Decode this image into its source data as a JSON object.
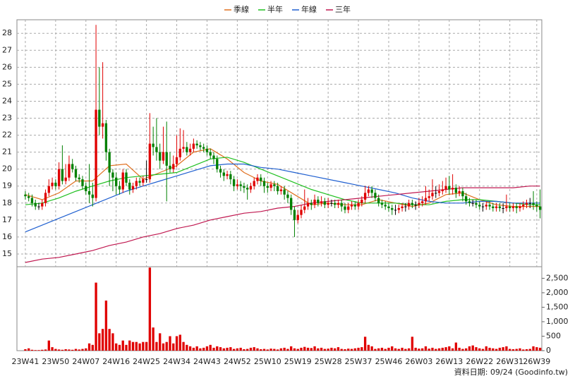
{
  "chart_data": {
    "type": "candlestick",
    "categories": [
      "23W41",
      null,
      null,
      null,
      null,
      null,
      null,
      null,
      null,
      "23W50",
      null,
      null,
      null,
      null,
      null,
      null,
      null,
      null,
      "24W07",
      null,
      null,
      null,
      null,
      null,
      null,
      null,
      null,
      "24W16",
      null,
      null,
      null,
      null,
      null,
      null,
      null,
      null,
      "24W25",
      null,
      null,
      null,
      null,
      null,
      null,
      null,
      null,
      "24W34",
      null,
      null,
      null,
      null,
      null,
      null,
      null,
      null,
      "24W43",
      null,
      null,
      null,
      null,
      null,
      null,
      null,
      null,
      "24W52",
      null,
      null,
      null,
      null,
      null,
      null,
      null,
      null,
      "25W10",
      null,
      null,
      null,
      null,
      null,
      null,
      null,
      null,
      "25W19",
      null,
      null,
      null,
      null,
      null,
      null,
      null,
      null,
      "25W28",
      null,
      null,
      null,
      null,
      null,
      null,
      null,
      null,
      "25W37",
      null,
      null,
      null,
      null,
      null,
      null,
      null,
      null,
      "25W46",
      null,
      null,
      null,
      null,
      null,
      null,
      null,
      null,
      "26W03",
      null,
      null,
      null,
      null,
      null,
      null,
      null,
      null,
      "26W13",
      null,
      null,
      null,
      null,
      null,
      null,
      null,
      null,
      "26W22",
      null,
      null,
      null,
      null,
      null,
      null,
      null,
      null,
      "26W31",
      null,
      null,
      null,
      null,
      null,
      null,
      null,
      "26W39",
      null
    ],
    "open": [
      18.5,
      18.4,
      18.3,
      18.0,
      17.8,
      17.8,
      18.0,
      18.6,
      19.0,
      19.2,
      19.0,
      20.0,
      19.3,
      19.5,
      20.3,
      20.0,
      19.5,
      19.4,
      19.0,
      18.7,
      18.5,
      18.3,
      23.5,
      22.5,
      22.7,
      21.0,
      19.8,
      19.5,
      19.0,
      18.8,
      19.8,
      19.2,
      18.8,
      19.0,
      19.3,
      19.2,
      19.4,
      19.4,
      21.5,
      21.3,
      21.0,
      20.5,
      21.0,
      20.2,
      20.0,
      20.3,
      20.7,
      21.2,
      21.3,
      21.0,
      21.2,
      21.5,
      21.4,
      21.3,
      21.2,
      21.0,
      20.8,
      20.6,
      20.0,
      19.8,
      19.6,
      19.7,
      19.4,
      19.0,
      19.1,
      19.0,
      18.9,
      18.8,
      19.0,
      19.3,
      19.5,
      19.3,
      19.0,
      18.9,
      19.1,
      19.0,
      18.7,
      18.8,
      18.5,
      18.3,
      17.6,
      17.0,
      17.3,
      17.6,
      17.8,
      18.0,
      17.9,
      18.2,
      18.0,
      18.1,
      17.9,
      18.0,
      18.0,
      17.9,
      18.0,
      17.8,
      17.6,
      17.8,
      17.9,
      17.8,
      18.0,
      18.2,
      18.6,
      18.8,
      18.6,
      18.3,
      18.0,
      17.9,
      17.8,
      17.7,
      17.6,
      17.6,
      17.7,
      17.8,
      17.8,
      18.0,
      17.9,
      17.9,
      18.0,
      18.1,
      18.3,
      18.4,
      18.6,
      18.6,
      18.7,
      18.8,
      19.0,
      18.8,
      18.9,
      18.6,
      18.7,
      18.4,
      18.1,
      18.0,
      18.0,
      17.9,
      17.8,
      17.8,
      17.9,
      17.8,
      17.7,
      17.8,
      17.7,
      17.7,
      17.8,
      17.7,
      17.8,
      17.7,
      17.8,
      17.9,
      18.0,
      18.0,
      17.9,
      17.8
    ],
    "high": [
      18.7,
      18.6,
      18.5,
      18.2,
      18.0,
      18.2,
      18.8,
      19.4,
      19.5,
      19.4,
      20.4,
      21.4,
      20.3,
      20.8,
      20.6,
      20.2,
      19.7,
      19.6,
      19.2,
      20.3,
      19.2,
      28.5,
      26.0,
      26.3,
      22.9,
      21.2,
      20.0,
      19.8,
      19.3,
      20.0,
      20.0,
      19.4,
      19.2,
      19.5,
      19.5,
      19.6,
      20.5,
      23.3,
      22.5,
      23.0,
      21.5,
      22.5,
      22.8,
      21.0,
      20.8,
      22.0,
      22.4,
      22.3,
      21.6,
      21.5,
      21.8,
      21.7,
      21.6,
      21.5,
      21.4,
      21.2,
      21.0,
      20.8,
      20.2,
      20.0,
      19.9,
      19.9,
      19.6,
      19.4,
      19.3,
      19.2,
      19.1,
      19.2,
      19.5,
      19.7,
      19.7,
      19.5,
      19.2,
      19.3,
      19.3,
      19.2,
      19.0,
      19.0,
      18.7,
      18.5,
      17.8,
      17.6,
      17.9,
      18.8,
      18.3,
      18.2,
      18.5,
      18.4,
      18.4,
      18.3,
      18.3,
      18.2,
      18.2,
      18.2,
      18.2,
      18.0,
      18.0,
      18.1,
      18.1,
      18.2,
      18.4,
      19.0,
      19.0,
      19.0,
      18.8,
      18.5,
      18.2,
      18.1,
      18.0,
      17.9,
      17.9,
      17.9,
      18.0,
      18.0,
      18.2,
      18.2,
      18.1,
      18.3,
      18.4,
      19.0,
      18.8,
      19.4,
      19.0,
      19.1,
      19.3,
      19.5,
      19.6,
      19.7,
      19.1,
      19.0,
      18.9,
      18.6,
      18.3,
      18.2,
      18.2,
      18.1,
      18.0,
      18.1,
      18.1,
      18.0,
      18.0,
      18.0,
      18.0,
      18.5,
      18.0,
      18.0,
      18.0,
      18.0,
      18.1,
      18.2,
      18.3,
      18.7,
      18.1,
      18.8
    ],
    "low": [
      18.2,
      18.1,
      17.8,
      17.6,
      17.6,
      17.6,
      17.8,
      18.4,
      18.8,
      18.8,
      18.8,
      19.1,
      19.1,
      19.3,
      19.8,
      19.3,
      19.2,
      18.8,
      18.5,
      18.0,
      17.8,
      18.1,
      22.0,
      21.8,
      20.5,
      19.0,
      18.7,
      18.5,
      18.5,
      18.6,
      19.0,
      18.5,
      18.6,
      18.8,
      19.0,
      19.0,
      19.2,
      19.2,
      20.8,
      20.5,
      20.0,
      20.3,
      18.1,
      19.8,
      19.8,
      20.1,
      20.5,
      21.0,
      20.8,
      20.8,
      21.0,
      21.2,
      21.1,
      21.0,
      20.8,
      20.6,
      20.3,
      19.8,
      19.5,
      19.3,
      19.4,
      19.1,
      18.7,
      18.8,
      18.7,
      18.6,
      18.2,
      18.6,
      18.8,
      19.1,
      19.0,
      18.6,
      18.6,
      18.7,
      18.7,
      18.5,
      18.5,
      18.2,
      18.0,
      17.3,
      16.0,
      16.8,
      17.1,
      17.4,
      17.6,
      17.6,
      17.7,
      17.8,
      17.8,
      17.7,
      17.7,
      17.8,
      17.7,
      17.7,
      17.5,
      17.4,
      17.4,
      17.6,
      17.6,
      17.6,
      17.8,
      18.0,
      18.4,
      18.3,
      18.1,
      17.8,
      17.7,
      17.6,
      17.5,
      17.3,
      17.3,
      17.4,
      17.5,
      17.5,
      17.6,
      17.7,
      17.6,
      17.7,
      17.8,
      17.9,
      18.1,
      18.2,
      18.3,
      18.4,
      18.5,
      18.6,
      18.5,
      18.5,
      18.3,
      18.4,
      18.1,
      17.9,
      17.8,
      17.8,
      17.7,
      17.6,
      17.5,
      17.6,
      17.6,
      17.5,
      17.5,
      17.5,
      17.4,
      17.5,
      17.5,
      17.5,
      17.4,
      17.5,
      17.6,
      17.7,
      17.7,
      17.6,
      17.5,
      17.1
    ],
    "close": [
      18.4,
      18.3,
      18.0,
      17.8,
      17.8,
      18.0,
      18.6,
      19.0,
      19.2,
      19.0,
      20.0,
      19.3,
      19.5,
      20.3,
      20.0,
      19.5,
      19.4,
      19.0,
      18.7,
      18.5,
      18.3,
      23.5,
      22.5,
      22.7,
      21.0,
      19.8,
      19.5,
      19.0,
      18.8,
      19.8,
      19.2,
      18.8,
      19.0,
      19.3,
      19.2,
      19.4,
      19.4,
      21.5,
      21.3,
      21.0,
      20.5,
      21.0,
      20.2,
      20.0,
      20.3,
      20.7,
      21.2,
      21.3,
      21.0,
      21.2,
      21.5,
      21.4,
      21.3,
      21.2,
      21.0,
      20.8,
      20.6,
      20.0,
      19.8,
      19.6,
      19.7,
      19.4,
      19.0,
      19.1,
      19.0,
      18.9,
      18.8,
      19.0,
      19.3,
      19.5,
      19.3,
      19.0,
      18.9,
      19.1,
      19.0,
      18.7,
      18.8,
      18.5,
      18.3,
      17.6,
      17.0,
      17.3,
      17.6,
      17.8,
      18.0,
      17.9,
      18.2,
      18.0,
      18.1,
      17.9,
      18.0,
      18.0,
      17.9,
      18.0,
      17.8,
      17.6,
      17.8,
      17.9,
      17.8,
      18.0,
      18.2,
      18.6,
      18.8,
      18.6,
      18.3,
      18.0,
      17.9,
      17.8,
      17.7,
      17.6,
      17.6,
      17.7,
      17.8,
      17.8,
      18.0,
      17.9,
      17.9,
      18.0,
      18.1,
      18.3,
      18.4,
      18.6,
      18.6,
      18.7,
      18.8,
      19.0,
      18.8,
      18.9,
      18.6,
      18.7,
      18.4,
      18.1,
      18.0,
      18.0,
      17.9,
      17.8,
      17.8,
      17.9,
      17.8,
      17.7,
      17.8,
      17.7,
      17.7,
      17.8,
      17.7,
      17.8,
      17.7,
      17.8,
      17.9,
      18.0,
      18.0,
      17.9,
      17.8,
      17.6
    ],
    "up_color": "#e00000",
    "down_color": "#008000",
    "flat_color": "#000000",
    "series": [
      {
        "name": "季線",
        "color": "#e07020",
        "x": [
          0,
          5,
          10,
          15,
          20,
          25,
          30,
          35,
          40,
          45,
          50,
          55,
          60,
          65,
          70,
          75,
          80,
          85,
          90,
          95,
          100,
          105,
          110,
          115,
          120,
          125,
          130,
          135,
          140,
          145,
          150,
          153
        ],
        "values": [
          18.5,
          18.2,
          18.6,
          19.3,
          19.3,
          20.2,
          20.3,
          19.4,
          19.8,
          20.2,
          21.0,
          21.2,
          20.6,
          19.8,
          19.3,
          19.1,
          18.5,
          17.9,
          18.0,
          17.9,
          17.9,
          18.2,
          18.0,
          17.8,
          18.0,
          18.5,
          18.6,
          18.2,
          17.9,
          17.8,
          17.8,
          17.8
        ]
      },
      {
        "name": "半年",
        "color": "#20c020",
        "x": [
          0,
          5,
          10,
          15,
          20,
          25,
          30,
          35,
          40,
          45,
          50,
          55,
          60,
          65,
          70,
          75,
          80,
          85,
          90,
          95,
          100,
          105,
          110,
          115,
          120,
          125,
          130,
          135,
          140,
          145,
          150,
          153
        ],
        "values": [
          17.9,
          18.0,
          18.3,
          18.7,
          19.0,
          19.3,
          19.5,
          19.6,
          19.7,
          19.8,
          20.2,
          20.6,
          20.7,
          20.4,
          20.0,
          19.6,
          19.2,
          18.8,
          18.5,
          18.2,
          18.0,
          18.0,
          18.0,
          17.9,
          17.9,
          18.1,
          18.2,
          18.2,
          18.1,
          18.0,
          17.9,
          17.9
        ]
      },
      {
        "name": "年線",
        "color": "#2060d0",
        "x": [
          0,
          5,
          10,
          15,
          20,
          25,
          30,
          35,
          40,
          45,
          50,
          55,
          60,
          65,
          70,
          75,
          80,
          85,
          90,
          95,
          100,
          105,
          110,
          115,
          120,
          125,
          130,
          135,
          140,
          145,
          150,
          153
        ],
        "values": [
          16.3,
          16.7,
          17.1,
          17.5,
          17.9,
          18.3,
          18.7,
          19.0,
          19.3,
          19.6,
          19.9,
          20.2,
          20.3,
          20.3,
          20.1,
          20.0,
          19.8,
          19.6,
          19.4,
          19.2,
          19.0,
          18.8,
          18.6,
          18.3,
          18.1,
          18.0,
          18.0,
          18.1,
          18.1,
          18.0,
          18.0,
          18.0
        ]
      },
      {
        "name": "三年",
        "color": "#c01850",
        "x": [
          0,
          5,
          10,
          15,
          20,
          25,
          30,
          35,
          40,
          45,
          50,
          55,
          60,
          65,
          70,
          75,
          80,
          85,
          90,
          95,
          100,
          105,
          110,
          115,
          120,
          125,
          130,
          135,
          140,
          145,
          150,
          153
        ],
        "values": [
          14.5,
          14.7,
          14.8,
          15.0,
          15.2,
          15.5,
          15.7,
          16.0,
          16.2,
          16.5,
          16.7,
          17.0,
          17.2,
          17.4,
          17.5,
          17.7,
          17.8,
          18.0,
          18.1,
          18.2,
          18.3,
          18.4,
          18.5,
          18.6,
          18.7,
          18.8,
          18.9,
          18.9,
          18.9,
          18.9,
          19.0,
          19.0
        ]
      }
    ],
    "ylim": [
      14.25,
      28.8
    ],
    "yticks": [
      15,
      16,
      17,
      18,
      19,
      20,
      21,
      22,
      23,
      24,
      25,
      26,
      27,
      28
    ],
    "grid": true,
    "volume": {
      "color": "#e00000",
      "ylim": [
        0,
        2900
      ],
      "yticks": [
        0,
        500,
        {
          "value": 1000,
          "label": "1,000"
        },
        {
          "value": 1500,
          "label": "1,500"
        },
        {
          "value": 2000,
          "label": "2,000"
        },
        {
          "value": 2500,
          "label": "2,500"
        }
      ],
      "values": [
        50,
        80,
        30,
        20,
        20,
        30,
        40,
        350,
        120,
        60,
        40,
        30,
        50,
        40,
        30,
        60,
        40,
        60,
        80,
        250,
        200,
        2350,
        600,
        750,
        1730,
        750,
        600,
        250,
        200,
        350,
        200,
        350,
        300,
        300,
        250,
        300,
        300,
        2870,
        800,
        300,
        600,
        250,
        300,
        500,
        250,
        500,
        550,
        300,
        200,
        150,
        100,
        150,
        80,
        100,
        150,
        200,
        100,
        150,
        120,
        80,
        100,
        120,
        60,
        80,
        100,
        50,
        60,
        100,
        120,
        80,
        50,
        60,
        40,
        70,
        60,
        40,
        80,
        100,
        60,
        150,
        80,
        60,
        100,
        130,
        100,
        90,
        150,
        80,
        100,
        60,
        70,
        100,
        80,
        120,
        60,
        50,
        70,
        60,
        80,
        100,
        120,
        480,
        200,
        150,
        60,
        80,
        100,
        60,
        100,
        150,
        80,
        60,
        100,
        60,
        80,
        480,
        100,
        70,
        80,
        150,
        70,
        100,
        60,
        80,
        100,
        120,
        150,
        80,
        280,
        100,
        60,
        80,
        150,
        180,
        120,
        80,
        60,
        150,
        100,
        80,
        60,
        100,
        120,
        150,
        60,
        50,
        60,
        80,
        40,
        50,
        60,
        150,
        120,
        100
      ]
    }
  },
  "footer": "資料日期: 09/24 (Goodinfo.tw)"
}
